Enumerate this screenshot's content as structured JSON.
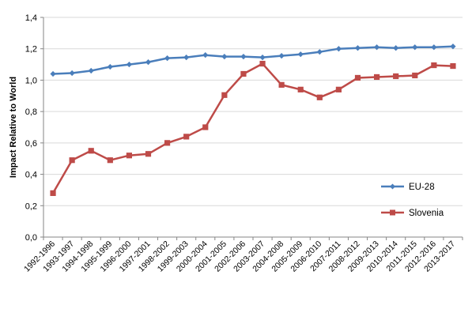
{
  "chart_data": {
    "type": "line",
    "title": "",
    "xlabel": "",
    "ylabel": "Impact Relative to World",
    "ylim": [
      0,
      1.4
    ],
    "yticks": [
      "0,0",
      "0,2",
      "0,4",
      "0,6",
      "0,8",
      "1,0",
      "1,2",
      "1,4"
    ],
    "ytick_values": [
      0,
      0.2,
      0.4,
      0.6,
      0.8,
      1.0,
      1.2,
      1.4
    ],
    "grid": true,
    "legend_position": "right",
    "categories": [
      "1992-1996",
      "1993-1997",
      "1994-1998",
      "1995-1999",
      "1996-2000",
      "1997-2001",
      "1998-2002",
      "1999-2003",
      "2000-2004",
      "2001-2005",
      "2002-2006",
      "2003-2007",
      "2004-2008",
      "2005-2009",
      "2006-2010",
      "2007-2011",
      "2008-2012",
      "2009-2013",
      "2010-2014",
      "2011-2015",
      "2012-2016",
      "2013-2017"
    ],
    "series": [
      {
        "name": "EU-28",
        "color": "#4a7ebb",
        "marker": "diamond",
        "values": [
          1.04,
          1.045,
          1.06,
          1.085,
          1.1,
          1.115,
          1.14,
          1.145,
          1.16,
          1.15,
          1.15,
          1.145,
          1.155,
          1.165,
          1.18,
          1.2,
          1.205,
          1.21,
          1.205,
          1.21,
          1.21,
          1.215
        ]
      },
      {
        "name": "Slovenia",
        "color": "#be4b48",
        "marker": "square",
        "values": [
          0.28,
          0.49,
          0.55,
          0.49,
          0.52,
          0.53,
          0.6,
          0.64,
          0.7,
          0.905,
          1.04,
          1.105,
          0.97,
          0.94,
          0.89,
          0.94,
          1.015,
          1.02,
          1.025,
          1.03,
          1.095,
          1.09
        ]
      }
    ]
  }
}
